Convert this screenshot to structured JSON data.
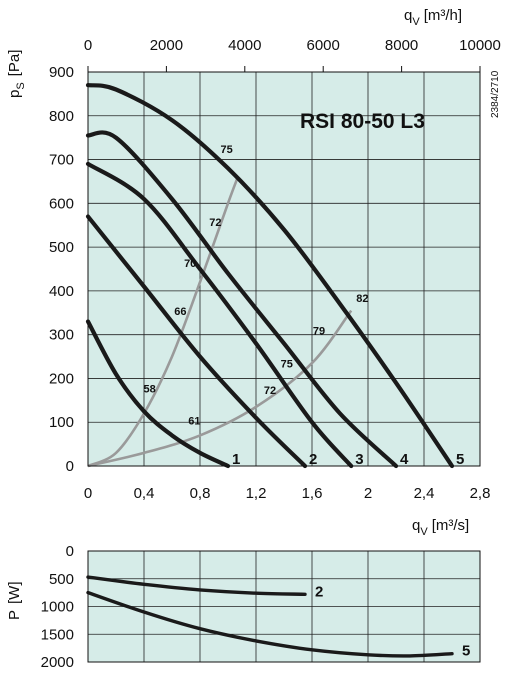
{
  "chart_data": [
    {
      "type": "line",
      "title": "RSI  80-50  L3",
      "side_code": "2384/2710",
      "ylabel": "p",
      "ylabel_sub": "S",
      "ylabel_unit": "[Pa]",
      "xlabel": "q",
      "xlabel_sub": "V",
      "xlabel_unit": "[m³/s]",
      "top_axis_label": "q",
      "top_axis_sub": "V",
      "top_axis_unit": "[m³/h]",
      "xlim": [
        0,
        2.8
      ],
      "ylim": [
        0,
        900
      ],
      "top_xlim": [
        0,
        10000
      ],
      "x_ticks": [
        "0",
        "0,4",
        "0,8",
        "1,2",
        "1,6",
        "2",
        "2,4",
        "2,8"
      ],
      "y_ticks": [
        "0",
        "100",
        "200",
        "300",
        "400",
        "500",
        "600",
        "700",
        "800",
        "900"
      ],
      "top_ticks": [
        "0",
        "2000",
        "4000",
        "6000",
        "8000",
        "10000"
      ],
      "background_color": "#d6ece8",
      "curve_color": "#1a1a1a",
      "efficiency_line_color": "#9a9a9a",
      "series": [
        {
          "name": "1",
          "x": [
            0,
            0.2,
            0.4,
            0.6,
            0.8,
            1.0
          ],
          "y": [
            330,
            210,
            125,
            70,
            30,
            0
          ]
        },
        {
          "name": "2",
          "x": [
            0,
            0.4,
            0.8,
            1.2,
            1.55
          ],
          "y": [
            570,
            410,
            250,
            110,
            0
          ]
        },
        {
          "name": "3",
          "x": [
            0,
            0.4,
            0.8,
            1.2,
            1.6,
            1.88
          ],
          "y": [
            690,
            610,
            450,
            280,
            100,
            0
          ]
        },
        {
          "name": "4",
          "x": [
            0,
            0.2,
            0.6,
            1.0,
            1.4,
            1.8,
            2.2
          ],
          "y": [
            755,
            750,
            610,
            440,
            280,
            120,
            0
          ]
        },
        {
          "name": "5",
          "x": [
            0,
            0.2,
            0.6,
            1.0,
            1.4,
            1.8,
            2.2,
            2.6
          ],
          "y": [
            870,
            860,
            790,
            680,
            540,
            370,
            190,
            0
          ]
        }
      ],
      "efficiency_lines": [
        {
          "x": [
            0,
            0.2,
            0.4,
            0.6,
            0.8,
            1.0,
            1.07
          ],
          "y": [
            0,
            30,
            120,
            250,
            420,
            600,
            660
          ]
        },
        {
          "x": [
            0,
            0.4,
            0.8,
            1.2,
            1.6,
            1.88
          ],
          "y": [
            0,
            30,
            70,
            135,
            235,
            355
          ]
        }
      ],
      "efficiency_labels": [
        {
          "text": "75",
          "x": 0.99,
          "y": 715
        },
        {
          "text": "72",
          "x": 0.91,
          "y": 548
        },
        {
          "text": "70",
          "x": 0.73,
          "y": 455
        },
        {
          "text": "66",
          "x": 0.66,
          "y": 345
        },
        {
          "text": "58",
          "x": 0.44,
          "y": 168
        },
        {
          "text": "61",
          "x": 0.76,
          "y": 95
        },
        {
          "text": "72",
          "x": 1.3,
          "y": 165
        },
        {
          "text": "75",
          "x": 1.42,
          "y": 225
        },
        {
          "text": "79",
          "x": 1.65,
          "y": 300
        },
        {
          "text": "82",
          "x": 1.96,
          "y": 375
        }
      ]
    },
    {
      "type": "line",
      "ylabel": "P",
      "ylabel_unit": "[W]",
      "xlim": [
        0,
        2.8
      ],
      "ylim": [
        0,
        2000
      ],
      "y_ticks": [
        "0",
        "500",
        "1000",
        "1500",
        "2000"
      ],
      "series": [
        {
          "name": "2",
          "x": [
            0,
            0.4,
            0.8,
            1.2,
            1.55
          ],
          "y": [
            470,
            600,
            700,
            760,
            780
          ]
        },
        {
          "name": "5",
          "x": [
            0,
            0.4,
            0.8,
            1.2,
            1.6,
            2.0,
            2.3,
            2.6
          ],
          "y": [
            750,
            1100,
            1400,
            1620,
            1780,
            1870,
            1890,
            1850
          ]
        }
      ]
    }
  ]
}
